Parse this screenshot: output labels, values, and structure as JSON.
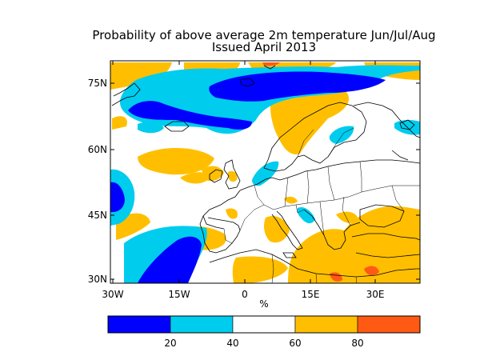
{
  "title": "Probability of above average 2m temperature Jun/Jul/Aug",
  "subtitle": "Issued April 2013",
  "map": {
    "lat_labels": [
      "75N",
      "60N",
      "45N",
      "30N"
    ],
    "lon_labels": [
      "30W",
      "15W",
      "0",
      "15E",
      "30E"
    ],
    "unit_label": "%"
  },
  "colorbar": {
    "labels": [
      "20",
      "40",
      "60",
      "80"
    ],
    "bins": [
      {
        "range": [
          0,
          20
        ],
        "color": "#0000ff"
      },
      {
        "range": [
          20,
          40
        ],
        "color": "#00ccee"
      },
      {
        "range": [
          40,
          60
        ],
        "color": "#ffffff"
      },
      {
        "range": [
          60,
          80
        ],
        "color": "#ffbf00"
      },
      {
        "range": [
          80,
          100
        ],
        "color": "#ff5a14"
      }
    ]
  },
  "colors": {
    "deep_blue": "#0000ff",
    "light_blue": "#00ccee",
    "orange": "#ffbf00",
    "red": "#ff5a14"
  }
}
